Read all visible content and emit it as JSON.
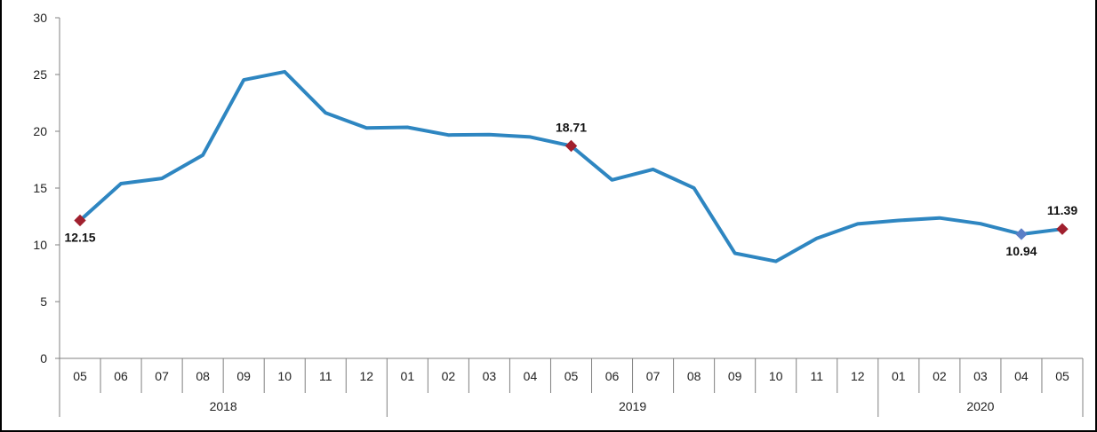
{
  "chart_data": {
    "type": "line",
    "title": "",
    "xlabel": "",
    "ylabel": "",
    "ylim": [
      0,
      30
    ],
    "y_ticks": [
      "0",
      "5",
      "10",
      "15",
      "20",
      "25",
      "30"
    ],
    "categories": [
      "05",
      "06",
      "07",
      "08",
      "09",
      "10",
      "11",
      "12",
      "01",
      "02",
      "03",
      "04",
      "05",
      "06",
      "07",
      "08",
      "09",
      "10",
      "11",
      "12",
      "01",
      "02",
      "03",
      "04",
      "05"
    ],
    "year_groups": [
      {
        "label": "2018",
        "start": 0,
        "end": 7
      },
      {
        "label": "2019",
        "start": 8,
        "end": 19
      },
      {
        "label": "2020",
        "start": 20,
        "end": 24
      }
    ],
    "series": [
      {
        "values": [
          12.15,
          15.39,
          15.85,
          17.9,
          24.52,
          25.24,
          21.62,
          20.3,
          20.35,
          19.67,
          19.71,
          19.5,
          18.71,
          15.72,
          16.65,
          15.01,
          9.26,
          8.55,
          10.56,
          11.84,
          12.15,
          12.37,
          11.86,
          10.94,
          11.39
        ],
        "color": "#2e86c1"
      }
    ],
    "labeled_points": [
      {
        "index": 0,
        "label": "12.15",
        "position": "below"
      },
      {
        "index": 12,
        "label": "18.71",
        "position": "above"
      },
      {
        "index": 23,
        "label": "10.94",
        "position": "below"
      },
      {
        "index": 24,
        "label": "11.39",
        "position": "above"
      }
    ],
    "marker_color": "#a0202e",
    "secondary_marker_color": "#5b7fc7",
    "grid": false,
    "legend": "none"
  }
}
